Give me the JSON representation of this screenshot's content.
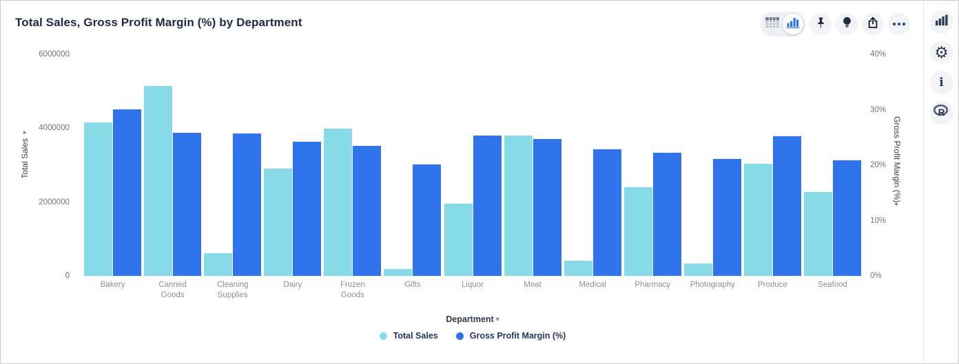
{
  "header": {
    "title": "Total Sales, Gross Profit Margin (%) by Department",
    "toolbar_icons": [
      "table-view-icon",
      "chart-view-icon",
      "pin-icon",
      "lightbulb-icon",
      "share-icon",
      "more-options-icon"
    ],
    "selected_view": "chart"
  },
  "rail_icons": [
    "chart-type-icon",
    "settings-gear-icon",
    "info-icon",
    "r-logo-icon"
  ],
  "icons_text": {
    "info_glyph": "i",
    "gear_glyph": "⚙"
  },
  "colors": {
    "sales_bar": "#87DCE8",
    "margin_bar": "#2F74EB",
    "title_text": "#1c2946",
    "legend_text": "#22356b",
    "tick_text": "#6e737b",
    "xlabel_text": "#8a9097"
  },
  "chart_data": {
    "type": "bar",
    "title": "Total Sales, Gross Profit Margin (%) by Department",
    "grid": false,
    "legend_position": "bottom",
    "categories": [
      "Bakery",
      "Canned Goods",
      "Cleaning Supplies",
      "Dairy",
      "Frozen Goods",
      "Gifts",
      "Liquor",
      "Meat",
      "Medical",
      "Pharmacy",
      "Photography",
      "Produce",
      "Seafood"
    ],
    "series": [
      {
        "name": "Total Sales",
        "axis": "left",
        "color": "#87DCE8",
        "values": [
          4150000,
          5150000,
          610000,
          2910000,
          3980000,
          180000,
          1960000,
          3800000,
          420000,
          2400000,
          330000,
          3040000,
          2270000
        ]
      },
      {
        "name": "Gross Profit Margin (%)",
        "axis": "right",
        "color": "#2F74EB",
        "values": [
          30.1,
          25.8,
          25.7,
          24.2,
          23.5,
          20.1,
          25.3,
          24.7,
          22.9,
          22.2,
          21.1,
          25.2,
          20.9
        ]
      }
    ],
    "left_axis": {
      "label": "Total Sales",
      "min": 0,
      "max": 6000000,
      "tick_values": [
        0,
        2000000,
        4000000,
        6000000
      ],
      "tick_labels": [
        "0",
        "2000000",
        "4000000",
        "6000000"
      ]
    },
    "right_axis": {
      "label": "Gross Profit Margin (%)",
      "min": 0,
      "max": 40,
      "tick_values": [
        0,
        10,
        20,
        30,
        40
      ],
      "tick_labels": [
        "0%",
        "10%",
        "20%",
        "30%",
        "40%"
      ]
    },
    "x_axis": {
      "label": "Department"
    },
    "arrows": {
      "left_axis_arrow": "▸",
      "right_axis_arrow": "◂",
      "department_arrow": "▾"
    }
  }
}
